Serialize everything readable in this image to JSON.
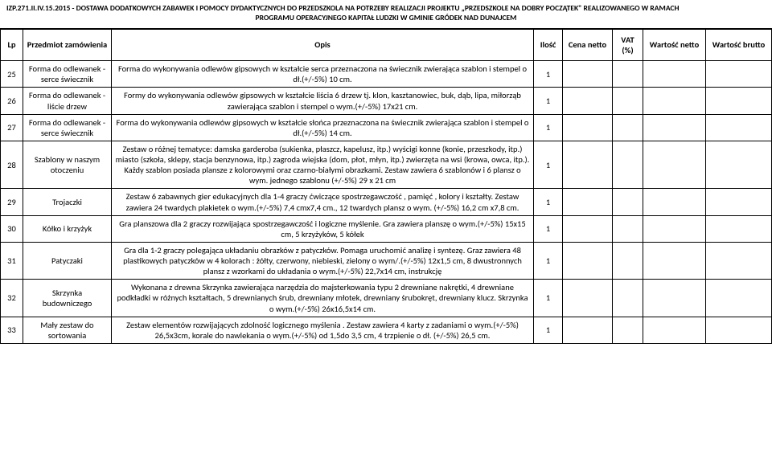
{
  "header": {
    "ref": "IZP.271.II.IV.15.2015 - DOSTAWA DODATKOWYCH ZABAWEK I POMOCY DYDAKTYCZNYCH DO PRZEDSZKOLA  NA POTRZEBY REALIZACJI PROJEKTU „PRZEDSZKOLE NA DOBRY POCZĄTEK\" REALIZOWANEGO W RAMACH",
    "line2": "PROGRAMU OPERACYJNEGO KAPITAŁ LUDZKI W GMINIE GRÓDEK NAD DUNAJCEM"
  },
  "columns": {
    "lp": "Lp",
    "item": "Przedmiot zamówienia",
    "desc": "Opis",
    "qty": "Ilość",
    "price": "Cena netto",
    "vat": "VAT (%)",
    "net": "Wartość netto",
    "gross": "Wartość brutto"
  },
  "rows": [
    {
      "lp": "25",
      "item": "Forma do odlewanek - serce świecznik",
      "desc": "Forma do wykonywania odlewów gipsowych  w kształcie serca przeznaczona na świecznik  zwierająca szablon i stempel o dł.(+/-5%) 10 cm.",
      "qty": "1"
    },
    {
      "lp": "26",
      "item": "Forma do odlewanek - liście drzew",
      "desc": "Formy do wykonywania odlewów gipsowych  w kształcie liścia 6 drzew tj. klon, kasztanowiec, buk, dąb, lipa, miłorząb  zawierająca szablon i stempel o wym.(+/-5%) 17x21 cm.",
      "qty": "1"
    },
    {
      "lp": "27",
      "item": "Forma do odlewanek - serce świecznik",
      "desc": "Forma do wykonywania odlewów gipsowych  w kształcie słońca  przeznaczona na świecznik  zwierająca szablon i stempel o dł.(+/-5%) 14 cm.",
      "qty": "1"
    },
    {
      "lp": "28",
      "item": "Szablony w naszym otoczeniu",
      "desc": "Zestaw o różnej tematyce: damska garderoba (sukienka, płaszcz, kapelusz, itp.) wyścigi konne (konie, przeszkody, itp.) miasto (szkoła, sklepy, stacja benzynowa, itp.) zagroda wiejska (dom, płot, młyn, itp.) zwierzęta na wsi (krowa, owca, itp.). Każdy szablon posiada plansze z kolorowymi oraz czarno-białymi obrazkami. Zestaw zawiera 6 szablonów i 6 plansz o wym. jednego szablonu (+/-5%) 29 x 21 cm",
      "qty": "1"
    },
    {
      "lp": "29",
      "item": "Trojaczki",
      "desc": "Zestaw 6 zabawnych gier edukacyjnych dla 1-4 graczy ćwiczące spostrzegawczość , pamięć , kolory i kształty. Zestaw zawiera 24 twardych plakietek o wym.(+/-5%) 7,4 cmx7,4 cm., 12 twardych plansz o wym. (+/-5%) 16,2  cm x7,8 cm.",
      "qty": "1"
    },
    {
      "lp": "30",
      "item": "Kółko i krzyżyk",
      "desc": "Gra planszowa dla 2 graczy rozwijająca spostrzegawczość i logiczne myślenie. Gra zawiera planszę o wym.(+/-5%) 15x15 cm, 5 krzyżyków, 5 kółek",
      "qty": "1"
    },
    {
      "lp": "31",
      "item": "Patyczaki",
      "desc": "Gra dla 1-2 graczy  polegająca układaniu obrazków z patyczków. Pomaga uruchomić analizę i syntezę. Graz zawiera 48 plastikowych patyczków w 4 kolorach : żółty, czerwony, niebieski, zielony o wym/.(+/-5%) 12x1,5 cm, 8 dwustronnych plansz z wzorkami do układania o wym.(+/-5%) 22,7x14 cm, instrukcję",
      "qty": "1"
    },
    {
      "lp": "32",
      "item": "Skrzynka budowniczego",
      "desc": "Wykonana z drewna Skrzynka zawierająca narzędzia do majsterkowania typu 2 drewniane nakrętki, 4 drewniane podkładki w różnych kształtach, 5 drewnianych śrub, drewniany młotek, drewniany śrubokręt, drewniany klucz. Skrzynka o wym.(+/-5%) 26x16,5x14 cm.",
      "qty": "1"
    },
    {
      "lp": "33",
      "item": "Mały zestaw do sortowania",
      "desc": "Zestaw elementów rozwijających zdolność logicznego myślenia . Zestaw zawiera 4 karty z zadaniami o wym.(+/-5%) 26,5x3cm, korale do nawlekania o wym.(+/-5%) od 1,5do 3,5 cm, 4 trzpienie o dł. (+/-5%) 26,5 cm.",
      "qty": "1"
    }
  ]
}
